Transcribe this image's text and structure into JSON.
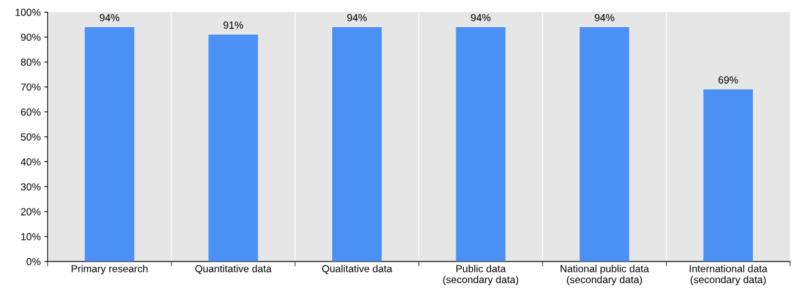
{
  "chart_data": {
    "type": "bar",
    "categories": [
      "Primary research",
      "Quantitative data",
      "Qualitative data",
      "Public data\n(secondary data)",
      "National public data\n(secondary data)",
      "International data\n(secondary data)"
    ],
    "values": [
      94,
      91,
      94,
      94,
      94,
      69
    ],
    "value_labels": [
      "94%",
      "91%",
      "94%",
      "94%",
      "94%",
      "69%"
    ],
    "color": "#4a90f5",
    "ylim": [
      0,
      100
    ],
    "yticks": [
      {
        "value": 0,
        "label": "0%"
      },
      {
        "value": 10,
        "label": "10%"
      },
      {
        "value": 20,
        "label": "20%"
      },
      {
        "value": 30,
        "label": "30%"
      },
      {
        "value": 40,
        "label": "40%"
      },
      {
        "value": 50,
        "label": "50%"
      },
      {
        "value": 60,
        "label": "60%"
      },
      {
        "value": 70,
        "label": "70%"
      },
      {
        "value": 80,
        "label": "80%"
      },
      {
        "value": 90,
        "label": "90%"
      },
      {
        "value": 100,
        "label": "100%"
      }
    ],
    "grid": "x",
    "legend": false
  }
}
